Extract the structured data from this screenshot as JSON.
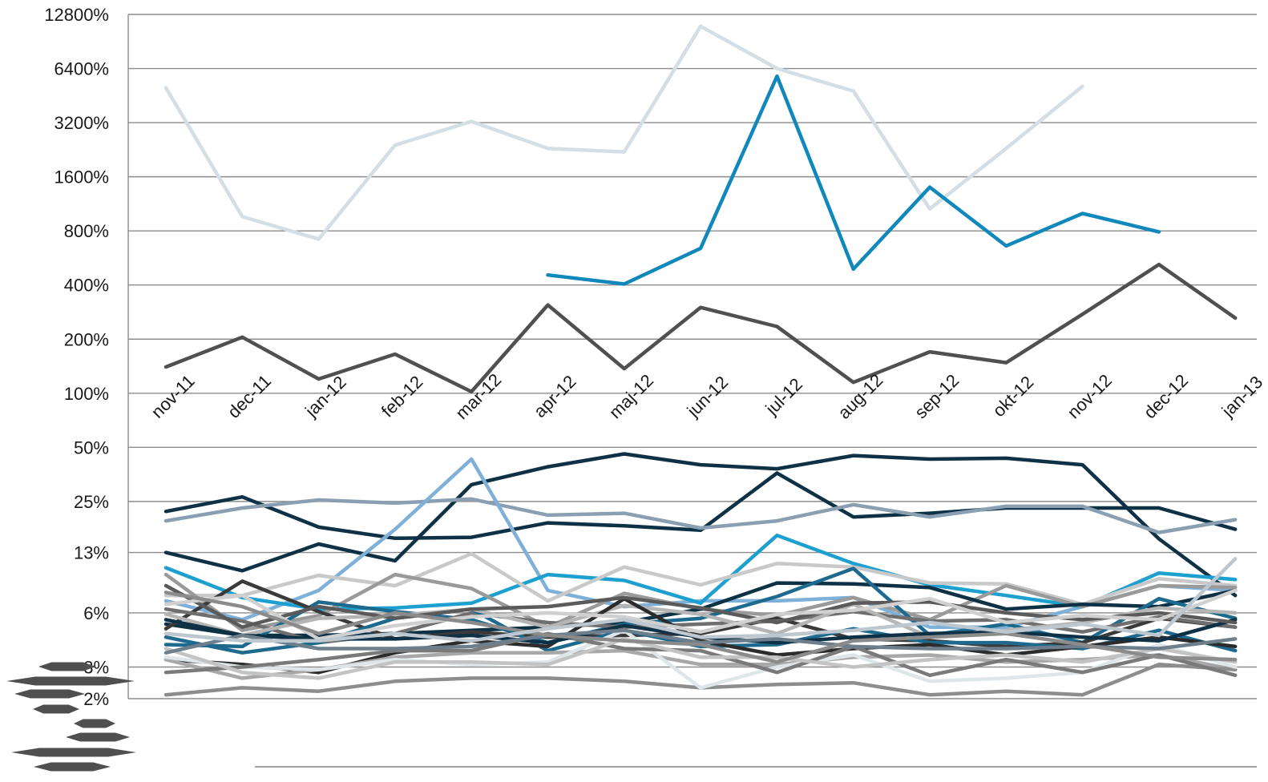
{
  "chart_data": {
    "type": "line",
    "title": "",
    "xlabel": "",
    "ylabel": "",
    "y_scale": "log2",
    "ylim": [
      2,
      12800
    ],
    "y_ticks": [
      {
        "value": 2,
        "label": "2%"
      },
      {
        "value": 3,
        "label": "3%"
      },
      {
        "value": 6,
        "label": "6%"
      },
      {
        "value": 13,
        "label": "13%"
      },
      {
        "value": 25,
        "label": "25%"
      },
      {
        "value": 50,
        "label": "50%"
      },
      {
        "value": 100,
        "label": "100%"
      },
      {
        "value": 200,
        "label": "200%"
      },
      {
        "value": 400,
        "label": "400%"
      },
      {
        "value": 800,
        "label": "800%"
      },
      {
        "value": 1600,
        "label": "1600%"
      },
      {
        "value": 3200,
        "label": "3200%"
      },
      {
        "value": 6400,
        "label": "6400%"
      },
      {
        "value": 12800,
        "label": "12800%"
      }
    ],
    "categories": [
      "nov-11",
      "dec-11",
      "jan-12",
      "feb-12",
      "mar-12",
      "apr-12",
      "maj-12",
      "jun-12",
      "jul-12",
      "aug-12",
      "sep-12",
      "okt-12",
      "nov-12",
      "dec-12",
      "jan-13"
    ],
    "grid": true,
    "legend": "left",
    "series": [
      {
        "color": "#d3dee5",
        "values": [
          5000,
          960,
          720,
          2400,
          3250,
          2300,
          2200,
          11000,
          6400,
          4800,
          1060,
          2300,
          5100,
          null,
          null
        ]
      },
      {
        "color": "#1188bb",
        "values": [
          null,
          null,
          null,
          null,
          null,
          455,
          405,
          640,
          5800,
          490,
          1400,
          660,
          1000,
          790,
          null
        ]
      },
      {
        "color": "#505050",
        "values": [
          140,
          205,
          120,
          165,
          102,
          310,
          137,
          300,
          235,
          115,
          170,
          148,
          275,
          520,
          262
        ]
      },
      {
        "color": "#0e3146",
        "values": [
          13,
          10.3,
          14.5,
          11.7,
          31,
          39,
          46,
          40,
          38,
          45,
          43,
          43.5,
          40,
          15.5,
          7.5
        ]
      },
      {
        "color": "#0e3146",
        "values": [
          22,
          26.5,
          18,
          15.6,
          15.8,
          19,
          18.3,
          17.3,
          36,
          20.5,
          21.5,
          23,
          23,
          23,
          17.5
        ]
      },
      {
        "color": "#8aa0b2",
        "values": [
          19.5,
          23,
          25.5,
          24.5,
          25.8,
          21,
          21.5,
          17.8,
          19.5,
          24,
          20.5,
          23.5,
          23.5,
          16.8,
          19.8
        ]
      },
      {
        "color": "#7fb0d8",
        "values": [
          7,
          5.5,
          8,
          17.5,
          43,
          8,
          6.5,
          7,
          7,
          7.3,
          5,
          5,
          6.5,
          8.5,
          8
        ]
      },
      {
        "color": "#1da0d0",
        "values": [
          10.7,
          7.3,
          6.3,
          6.4,
          6.8,
          9.8,
          9.1,
          6.8,
          16.2,
          11.3,
          8.6,
          7.5,
          6.5,
          10,
          9.2
        ]
      },
      {
        "color": "#c9c9c9",
        "values": [
          7.5,
          7.5,
          9.7,
          8.5,
          12.8,
          7,
          10.8,
          8.6,
          11.3,
          10.8,
          8.8,
          8.7,
          6.7,
          9.3,
          8.5
        ]
      },
      {
        "color": "#9a9a9a",
        "values": [
          9.8,
          4.8,
          5.8,
          9.8,
          8.2,
          5,
          7.7,
          6.3,
          5.8,
          7.3,
          5.5,
          8.5,
          6.5,
          8.5,
          8.3
        ]
      },
      {
        "color": "#0e3146",
        "values": [
          5.2,
          4.5,
          4.5,
          4.6,
          4.8,
          5,
          5.3,
          6.3,
          8.8,
          8.7,
          8.3,
          6.3,
          6.7,
          6.5,
          8
        ]
      },
      {
        "color": "#1e6a8e",
        "values": [
          4,
          3.9,
          6.9,
          6.1,
          5.5,
          4.1,
          5.2,
          5.6,
          7.4,
          10.6,
          4.5,
          5.2,
          4.1,
          7.2,
          5.6
        ]
      },
      {
        "color": "#3a3a3a",
        "values": [
          4.9,
          9,
          6.1,
          4.3,
          4.7,
          4.4,
          4.5,
          4.6,
          5.6,
          4.3,
          4.2,
          3.9,
          4.1,
          5.6,
          5
        ]
      },
      {
        "color": "#6f6f6f",
        "values": [
          6.3,
          5.4,
          4.1,
          4.6,
          6,
          5.3,
          5,
          5.2,
          5.4,
          6.1,
          5.4,
          5.5,
          4.7,
          5.7,
          5
        ]
      },
      {
        "color": "#1e6a8e",
        "values": [
          4.4,
          3.6,
          4.1,
          5.6,
          6.3,
          3.7,
          4.8,
          3.9,
          4,
          4.9,
          4.1,
          4.1,
          3.8,
          4.8,
          3.7
        ]
      },
      {
        "color": "#b5b5b5",
        "values": [
          5.9,
          4.5,
          5.6,
          5.8,
          6.3,
          5,
          6.6,
          5.9,
          4.6,
          6.7,
          4.4,
          4.8,
          5.3,
          6.4,
          6
        ]
      },
      {
        "color": "#2c2c2c",
        "values": [
          3.3,
          3.1,
          2.8,
          3.6,
          4.2,
          3.9,
          7.2,
          4.2,
          3.5,
          3.8,
          4,
          3.5,
          3.9,
          4.4,
          3.9
        ]
      },
      {
        "color": "#a8a8a8",
        "values": [
          3.3,
          2.6,
          2.9,
          3.4,
          3.6,
          3.6,
          3.7,
          3.1,
          3.1,
          3.4,
          3.5,
          3.2,
          3.3,
          3.5,
          2.9
        ]
      },
      {
        "color": "#8d8d8d",
        "values": [
          2.1,
          2.3,
          2.2,
          2.5,
          2.6,
          2.6,
          2.5,
          2.3,
          2.4,
          2.45,
          2.1,
          2.2,
          2.1,
          3.1,
          2.9
        ]
      },
      {
        "color": "#dfe6ea",
        "values": [
          3.4,
          3,
          2.9,
          3.3,
          3.1,
          3.2,
          4.8,
          2.3,
          3,
          3.5,
          2.5,
          2.6,
          2.8,
          4,
          3
        ]
      },
      {
        "color": "#7a7a7a",
        "values": [
          2.8,
          3,
          3.3,
          3.7,
          3.7,
          4.6,
          3.8,
          3.7,
          2.8,
          3.9,
          2.7,
          3.3,
          2.8,
          3.5,
          2.7
        ]
      },
      {
        "color": "#0e3146",
        "values": [
          5.5,
          4.5,
          4.3,
          4.3,
          4.5,
          4.1,
          5.1,
          4.4,
          4.1,
          4.4,
          4.6,
          4.7,
          4.4,
          4.2,
          5.5
        ]
      },
      {
        "color": "#5a5a5a",
        "values": [
          8.5,
          5,
          6.5,
          5.6,
          6.3,
          6.5,
          7.3,
          6.4,
          5.3,
          6.8,
          6.9,
          6,
          5.5,
          6,
          5.3
        ]
      },
      {
        "color": "#d0d0d0",
        "values": [
          6.7,
          7.5,
          4.3,
          5.1,
          5.7,
          6,
          5.7,
          4.7,
          5.9,
          6.2,
          7.2,
          5.3,
          5.8,
          5.5,
          8
        ]
      },
      {
        "color": "#c3c3c3",
        "values": [
          3.8,
          2.8,
          2.6,
          3.2,
          3.2,
          3.1,
          4.3,
          3.4,
          3.4,
          3,
          3.3,
          3.5,
          3.2,
          3.8,
          3.2
        ]
      },
      {
        "color": "#6d7f8c",
        "values": [
          3.6,
          4.5,
          3.8,
          3.8,
          3.9,
          4.5,
          4.8,
          4.1,
          4.3,
          3.9,
          3.8,
          3.8,
          3.9,
          3.8,
          4.3
        ]
      },
      {
        "color": "#8b8b8b",
        "values": [
          7.8,
          6.5,
          4.6,
          6,
          5.3,
          4.5,
          4.2,
          4,
          3.2,
          4.2,
          4.4,
          4.6,
          4,
          3.4,
          3.3
        ]
      },
      {
        "color": "#bdc7cf",
        "values": [
          4.6,
          4.2,
          4.2,
          4.6,
          4.2,
          4.9,
          5.5,
          4.4,
          4.5,
          4.8,
          5.3,
          4.7,
          5.2,
          4.5,
          12
        ]
      }
    ]
  },
  "legend_marks": [
    {
      "label": "",
      "color": "#4f4f4f"
    },
    {
      "label": "",
      "color": "#4f4f4f"
    },
    {
      "label": "",
      "color": "#4f4f4f"
    },
    {
      "label": "",
      "color": "#4f4f4f"
    },
    {
      "label": "",
      "color": "#4f4f4f"
    },
    {
      "label": "",
      "color": "#4f4f4f"
    },
    {
      "label": "",
      "color": "#4f4f4f"
    },
    {
      "label": "",
      "color": "#4f4f4f"
    }
  ]
}
